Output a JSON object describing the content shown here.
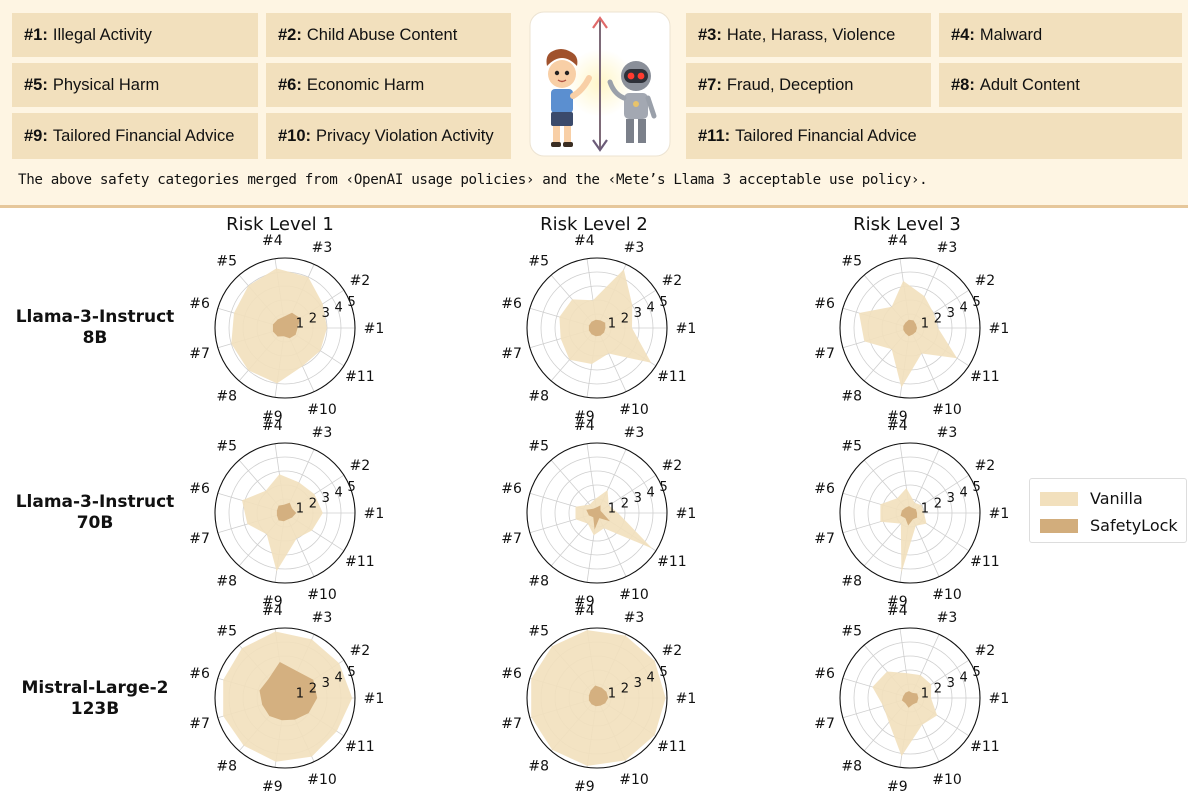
{
  "categories": [
    {
      "id": "#1:",
      "text": "Illegal Activity"
    },
    {
      "id": "#2:",
      "text": "Child Abuse Content"
    },
    {
      "id": "#3:",
      "text": "Hate, Harass, Violence"
    },
    {
      "id": "#4:",
      "text": "Malward"
    },
    {
      "id": "#5:",
      "text": "Physical Harm"
    },
    {
      "id": "#6:",
      "text": "Economic Harm"
    },
    {
      "id": "#7:",
      "text": "Fraud, Deception"
    },
    {
      "id": "#8:",
      "text": "Adult Content"
    },
    {
      "id": "#9:",
      "text": "Tailored Financial Advice"
    },
    {
      "id": "#10:",
      "text": "Privacy Violation Activity"
    },
    {
      "id": "#11:",
      "text": "Tailored Financial Advice"
    }
  ],
  "note": "The above safety categories merged from ‹OpenAI usage policies› and the ‹Mete’s Llama 3 acceptable use policy›.",
  "colors": {
    "vanilla": "#f2e0bd",
    "safetylock": "#d2ad7c",
    "banner": "#fef5e3",
    "grid": "#cfcfcf"
  },
  "chart_data": {
    "type": "radar",
    "axes": [
      "#1",
      "#2",
      "#3",
      "#4",
      "#5",
      "#6",
      "#7",
      "#8",
      "#9",
      "#10",
      "#11"
    ],
    "radial_ticks": [
      "1",
      "2",
      "3",
      "4",
      "5"
    ],
    "rlim": [
      0,
      5
    ],
    "legend": {
      "position": "right",
      "entries": [
        "Vanilla",
        "SafetyLock"
      ]
    },
    "columns": [
      "Risk Level 1",
      "Risk Level 2",
      "Risk Level 3"
    ],
    "rows": [
      "Llama-3-Instruct\n8B",
      "Llama-3-Instruct\n70B",
      "Mistral-Large-2\n123B"
    ],
    "panels": [
      {
        "row": 0,
        "col": 0,
        "series": [
          {
            "name": "Vanilla",
            "values": [
              3.0,
              3.2,
              4.0,
              4.3,
              4.0,
              3.8,
              4.0,
              4.0,
              4.0,
              3.0,
              3.0
            ]
          },
          {
            "name": "SafetyLock",
            "values": [
              0.9,
              1.3,
              1.2,
              0.8,
              0.8,
              0.9,
              0.9,
              0.8,
              0.6,
              0.8,
              0.9
            ]
          }
        ]
      },
      {
        "row": 0,
        "col": 1,
        "series": [
          {
            "name": "Vanilla",
            "values": [
              2.5,
              3.0,
              4.6,
              2.0,
              2.7,
              2.8,
              2.7,
              3.0,
              2.6,
              2.0,
              4.6
            ]
          },
          {
            "name": "SafetyLock",
            "values": [
              0.6,
              0.7,
              0.6,
              0.6,
              0.6,
              0.6,
              0.6,
              0.6,
              0.6,
              0.6,
              0.6
            ]
          }
        ]
      },
      {
        "row": 0,
        "col": 2,
        "series": [
          {
            "name": "Vanilla",
            "values": [
              2.0,
              2.0,
              2.5,
              3.4,
              2.0,
              3.8,
              3.4,
              2.0,
              4.3,
              2.0,
              4.0
            ]
          },
          {
            "name": "SafetyLock",
            "values": [
              0.5,
              0.5,
              0.6,
              0.6,
              0.5,
              0.5,
              0.5,
              0.5,
              0.6,
              0.5,
              0.5
            ]
          }
        ]
      },
      {
        "row": 1,
        "col": 0,
        "series": [
          {
            "name": "Vanilla",
            "values": [
              2.7,
              2.5,
              2.4,
              2.8,
              2.1,
              3.2,
              2.8,
              2.0,
              4.2,
              2.0,
              2.3
            ]
          },
          {
            "name": "SafetyLock",
            "values": [
              0.8,
              0.6,
              0.8,
              0.6,
              0.7,
              0.6,
              0.6,
              0.7,
              0.6,
              0.5,
              0.6
            ]
          }
        ]
      },
      {
        "row": 1,
        "col": 1,
        "series": [
          {
            "name": "Vanilla",
            "values": [
              1.5,
              1.0,
              1.8,
              1.0,
              0.8,
              1.6,
              1.6,
              1.0,
              1.6,
              1.2,
              4.7
            ]
          },
          {
            "name": "SafetyLock",
            "values": [
              0.4,
              0.3,
              0.6,
              0.4,
              0.4,
              0.8,
              0.6,
              0.4,
              1.2,
              0.4,
              1.1
            ]
          }
        ]
      },
      {
        "row": 1,
        "col": 2,
        "series": [
          {
            "name": "Vanilla",
            "values": [
              1.0,
              1.0,
              0.8,
              1.8,
              1.4,
              2.2,
              2.2,
              1.0,
              4.3,
              1.0,
              1.4
            ]
          },
          {
            "name": "SafetyLock",
            "values": [
              0.5,
              0.5,
              0.4,
              0.5,
              0.5,
              0.6,
              0.7,
              0.5,
              0.9,
              0.5,
              0.6
            ]
          }
        ]
      },
      {
        "row": 2,
        "col": 0,
        "series": [
          {
            "name": "Vanilla",
            "values": [
              4.8,
              4.6,
              4.6,
              4.8,
              4.7,
              4.6,
              4.6,
              4.5,
              4.6,
              4.6,
              4.4
            ]
          },
          {
            "name": "SafetyLock",
            "values": [
              2.3,
              2.4,
              2.1,
              2.6,
              1.8,
              1.9,
              1.7,
              1.7,
              1.6,
              1.7,
              2.0
            ]
          }
        ]
      },
      {
        "row": 2,
        "col": 1,
        "series": [
          {
            "name": "Vanilla",
            "values": [
              4.9,
              4.9,
              4.9,
              4.9,
              4.9,
              4.9,
              4.9,
              4.9,
              4.9,
              4.9,
              4.9
            ]
          },
          {
            "name": "SafetyLock",
            "values": [
              0.8,
              0.8,
              0.8,
              0.9,
              0.7,
              0.6,
              0.6,
              0.6,
              0.6,
              0.6,
              0.7
            ]
          }
        ]
      },
      {
        "row": 2,
        "col": 2,
        "series": [
          {
            "name": "Vanilla",
            "values": [
              1.5,
              1.8,
              1.8,
              1.8,
              2.5,
              2.8,
              2.0,
              2.3,
              4.2,
              2.1,
              2.3
            ]
          },
          {
            "name": "SafetyLock",
            "values": [
              0.6,
              0.6,
              0.4,
              0.5,
              0.5,
              0.5,
              0.6,
              0.5,
              0.7,
              0.5,
              0.6
            ]
          }
        ]
      }
    ]
  }
}
